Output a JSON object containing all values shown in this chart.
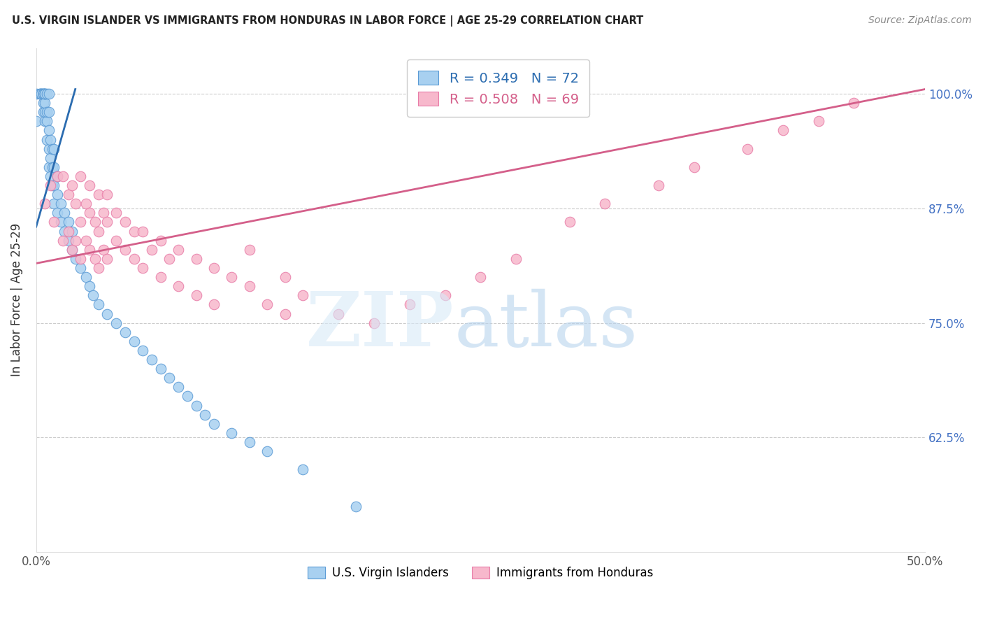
{
  "title": "U.S. VIRGIN ISLANDER VS IMMIGRANTS FROM HONDURAS IN LABOR FORCE | AGE 25-29 CORRELATION CHART",
  "source": "Source: ZipAtlas.com",
  "ylabel": "In Labor Force | Age 25-29",
  "right_yticks": [
    0.625,
    0.75,
    0.875,
    1.0
  ],
  "right_yticklabels": [
    "62.5%",
    "75.0%",
    "87.5%",
    "100.0%"
  ],
  "xmin": 0.0,
  "xmax": 0.5,
  "ymin": 0.5,
  "ymax": 1.05,
  "blue_R": 0.349,
  "blue_N": 72,
  "pink_R": 0.508,
  "pink_N": 69,
  "blue_color": "#a8d0f0",
  "pink_color": "#f7b8cc",
  "blue_edge_color": "#5b9bd5",
  "pink_edge_color": "#e87da8",
  "blue_line_color": "#2b6cb0",
  "pink_line_color": "#d45f8a",
  "legend_label_blue": "U.S. Virgin Islanders",
  "legend_label_pink": "Immigrants from Honduras",
  "blue_scatter_x": [
    0.0,
    0.0,
    0.002,
    0.002,
    0.003,
    0.003,
    0.003,
    0.004,
    0.004,
    0.004,
    0.004,
    0.004,
    0.005,
    0.005,
    0.005,
    0.005,
    0.005,
    0.005,
    0.006,
    0.006,
    0.006,
    0.006,
    0.007,
    0.007,
    0.007,
    0.007,
    0.007,
    0.008,
    0.008,
    0.008,
    0.009,
    0.009,
    0.009,
    0.01,
    0.01,
    0.01,
    0.01,
    0.012,
    0.012,
    0.012,
    0.014,
    0.014,
    0.016,
    0.016,
    0.018,
    0.018,
    0.02,
    0.02,
    0.022,
    0.025,
    0.028,
    0.03,
    0.032,
    0.035,
    0.04,
    0.045,
    0.05,
    0.055,
    0.06,
    0.065,
    0.07,
    0.075,
    0.08,
    0.085,
    0.09,
    0.095,
    0.1,
    0.11,
    0.12,
    0.13,
    0.15,
    0.18
  ],
  "blue_scatter_y": [
    0.97,
    1.0,
    1.0,
    1.0,
    1.0,
    1.0,
    1.0,
    0.98,
    0.99,
    1.0,
    1.0,
    1.0,
    0.97,
    0.98,
    0.99,
    1.0,
    1.0,
    1.0,
    0.95,
    0.97,
    0.98,
    1.0,
    0.92,
    0.94,
    0.96,
    0.98,
    1.0,
    0.91,
    0.93,
    0.95,
    0.9,
    0.92,
    0.94,
    0.88,
    0.9,
    0.92,
    0.94,
    0.87,
    0.89,
    0.91,
    0.86,
    0.88,
    0.85,
    0.87,
    0.84,
    0.86,
    0.83,
    0.85,
    0.82,
    0.81,
    0.8,
    0.79,
    0.78,
    0.77,
    0.76,
    0.75,
    0.74,
    0.73,
    0.72,
    0.71,
    0.7,
    0.69,
    0.68,
    0.67,
    0.66,
    0.65,
    0.64,
    0.63,
    0.62,
    0.61,
    0.59,
    0.55
  ],
  "pink_scatter_x": [
    0.005,
    0.008,
    0.01,
    0.012,
    0.015,
    0.015,
    0.018,
    0.018,
    0.02,
    0.02,
    0.022,
    0.022,
    0.025,
    0.025,
    0.025,
    0.028,
    0.028,
    0.03,
    0.03,
    0.03,
    0.033,
    0.033,
    0.035,
    0.035,
    0.035,
    0.038,
    0.038,
    0.04,
    0.04,
    0.04,
    0.045,
    0.045,
    0.05,
    0.05,
    0.055,
    0.055,
    0.06,
    0.06,
    0.065,
    0.07,
    0.07,
    0.075,
    0.08,
    0.08,
    0.09,
    0.09,
    0.1,
    0.1,
    0.11,
    0.12,
    0.12,
    0.13,
    0.14,
    0.14,
    0.15,
    0.17,
    0.19,
    0.21,
    0.23,
    0.25,
    0.27,
    0.3,
    0.32,
    0.35,
    0.37,
    0.4,
    0.42,
    0.44,
    0.46
  ],
  "pink_scatter_y": [
    0.88,
    0.9,
    0.86,
    0.91,
    0.84,
    0.91,
    0.85,
    0.89,
    0.83,
    0.9,
    0.84,
    0.88,
    0.82,
    0.86,
    0.91,
    0.84,
    0.88,
    0.83,
    0.87,
    0.9,
    0.82,
    0.86,
    0.81,
    0.85,
    0.89,
    0.83,
    0.87,
    0.82,
    0.86,
    0.89,
    0.84,
    0.87,
    0.83,
    0.86,
    0.82,
    0.85,
    0.81,
    0.85,
    0.83,
    0.8,
    0.84,
    0.82,
    0.79,
    0.83,
    0.78,
    0.82,
    0.77,
    0.81,
    0.8,
    0.79,
    0.83,
    0.77,
    0.76,
    0.8,
    0.78,
    0.76,
    0.75,
    0.77,
    0.78,
    0.8,
    0.82,
    0.86,
    0.88,
    0.9,
    0.92,
    0.94,
    0.96,
    0.97,
    0.99
  ],
  "blue_trend_x0": 0.0,
  "blue_trend_x1": 0.022,
  "blue_trend_y0": 0.855,
  "blue_trend_y1": 1.005,
  "pink_trend_x0": 0.0,
  "pink_trend_x1": 0.5,
  "pink_trend_y0": 0.815,
  "pink_trend_y1": 1.005
}
